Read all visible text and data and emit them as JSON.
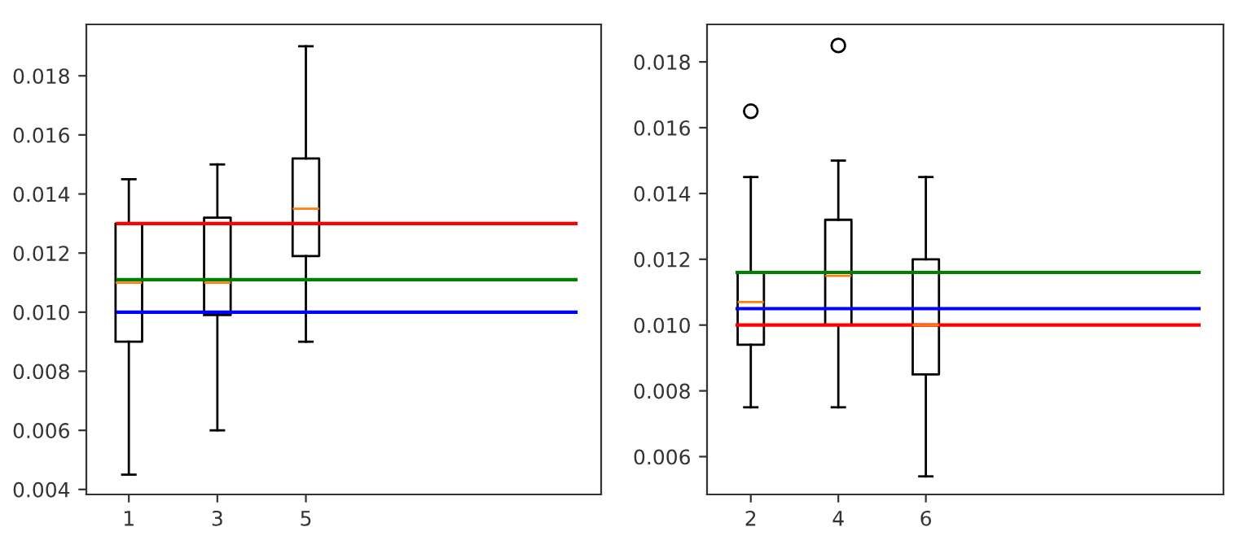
{
  "chart_data": [
    {
      "type": "box",
      "x": [
        1,
        3,
        5
      ],
      "xlim": [
        0.04,
        11.67
      ],
      "xticks": [
        1,
        3,
        5
      ],
      "ylim": [
        0.00383,
        0.01974
      ],
      "yticks": [
        0.004,
        0.006,
        0.008,
        {
          "value": 0.01,
          "label": "0.010"
        },
        0.012,
        0.014,
        0.016,
        0.018
      ],
      "grid": false,
      "boxes": [
        {
          "low": 0.0045,
          "q1": 0.009,
          "median": 0.011,
          "q3": 0.013,
          "high": 0.0145
        },
        {
          "low": 0.006,
          "q1": 0.0099,
          "median": 0.011,
          "q3": 0.0132,
          "high": 0.015
        },
        {
          "low": 0.009,
          "q1": 0.0119,
          "median": 0.0135,
          "q3": 0.0152,
          "high": 0.019
        }
      ],
      "series": [
        {
          "type": "line",
          "color": "#ff0000",
          "x": [
            0.75,
            11.1
          ],
          "values": [
            0.013,
            0.013
          ]
        },
        {
          "type": "line",
          "color": "#008000",
          "x": [
            0.75,
            11.1
          ],
          "values": [
            0.0111,
            0.0111
          ]
        },
        {
          "type": "line",
          "color": "#0000ff",
          "x": [
            0.75,
            11.1
          ],
          "values": [
            0.01,
            0.01
          ]
        }
      ]
    },
    {
      "type": "box",
      "x": [
        2,
        4,
        6
      ],
      "xlim": [
        1.0,
        12.8
      ],
      "xticks": [
        2,
        4,
        6
      ],
      "ylim": [
        0.00485,
        0.01914
      ],
      "yticks": [
        0.006,
        0.008,
        {
          "value": 0.01,
          "label": "0.010"
        },
        0.012,
        0.014,
        0.016,
        0.018
      ],
      "grid": false,
      "boxes": [
        {
          "low": 0.0075,
          "q1": 0.0094,
          "median": 0.0107,
          "q3": 0.0116,
          "high": 0.0145,
          "outliers": [
            0.0165
          ]
        },
        {
          "low": 0.0075,
          "q1": 0.01,
          "median": 0.0115,
          "q3": 0.0132,
          "high": 0.015,
          "outliers": [
            0.0185
          ]
        },
        {
          "low": 0.0054,
          "q1": 0.0085,
          "median": 0.01,
          "q3": 0.012,
          "high": 0.0145
        }
      ],
      "series": [
        {
          "type": "line",
          "color": "#008000",
          "x": [
            1.69,
            12.24
          ],
          "values": [
            0.0116,
            0.0116
          ]
        },
        {
          "type": "line",
          "color": "#0000ff",
          "x": [
            1.69,
            12.24
          ],
          "values": [
            0.0105,
            0.0105
          ]
        },
        {
          "type": "line",
          "color": "#ff0000",
          "x": [
            1.69,
            12.24
          ],
          "values": [
            0.01,
            0.01
          ]
        }
      ]
    }
  ]
}
